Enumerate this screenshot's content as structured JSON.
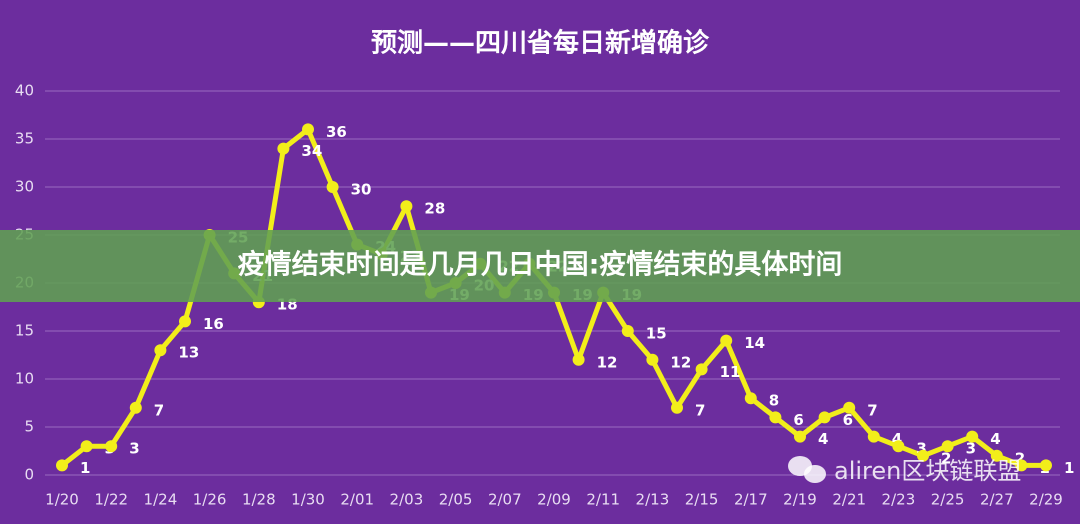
{
  "chart_data": {
    "type": "line",
    "title": "预测——四川省每日新增确诊",
    "categories": [
      "1/20",
      null,
      "1/22",
      null,
      "1/24",
      null,
      "1/26",
      null,
      "1/28",
      null,
      "1/30",
      null,
      "2/01",
      null,
      "2/03",
      null,
      "2/05",
      null,
      "2/07",
      null,
      "2/09",
      null,
      "2/11",
      null,
      "2/13",
      null,
      "2/15",
      null,
      "2/17",
      null,
      "2/19",
      null,
      "2/21",
      null,
      "2/23",
      null,
      "2/25",
      null,
      "2/27",
      null,
      "2/29"
    ],
    "values": [
      1,
      3,
      3,
      7,
      13,
      16,
      25,
      21,
      18,
      34,
      36,
      30,
      24,
      23,
      28,
      19,
      20,
      22,
      19,
      22,
      19,
      12,
      19,
      15,
      12,
      7,
      11,
      14,
      8,
      6,
      4,
      6,
      7,
      4,
      3,
      2,
      3,
      4,
      2,
      1,
      1
    ],
    "color": "#f2ee1a",
    "ylim": [
      0,
      40
    ],
    "yticks": [
      0,
      5,
      10,
      15,
      20,
      25,
      30,
      35,
      40
    ],
    "grid": true
  },
  "banner": "疫情结束时间是几月几日中国:疫情结束的具体时间",
  "watermark": "aliren区块链联盟"
}
